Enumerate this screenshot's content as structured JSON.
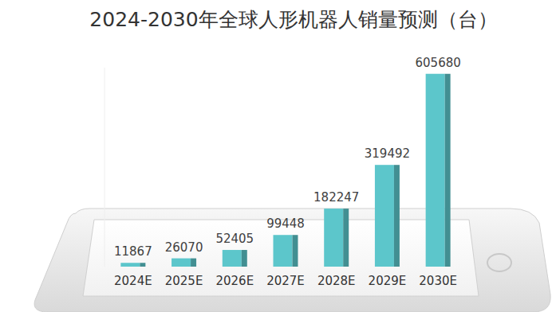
{
  "chart_data": {
    "type": "bar",
    "title": "2024-2030年全球人形机器人销量预测（台）",
    "categories": [
      "2024E",
      "2025E",
      "2026E",
      "2027E",
      "2028E",
      "2029E",
      "2030E"
    ],
    "values": [
      11867,
      26070,
      52405,
      99448,
      182247,
      319492,
      605680
    ],
    "color": "#5cc6cb",
    "ylim": [
      0,
      625000
    ],
    "yticks": [],
    "grid": false,
    "data_labels": true,
    "tick_labels": "x"
  }
}
